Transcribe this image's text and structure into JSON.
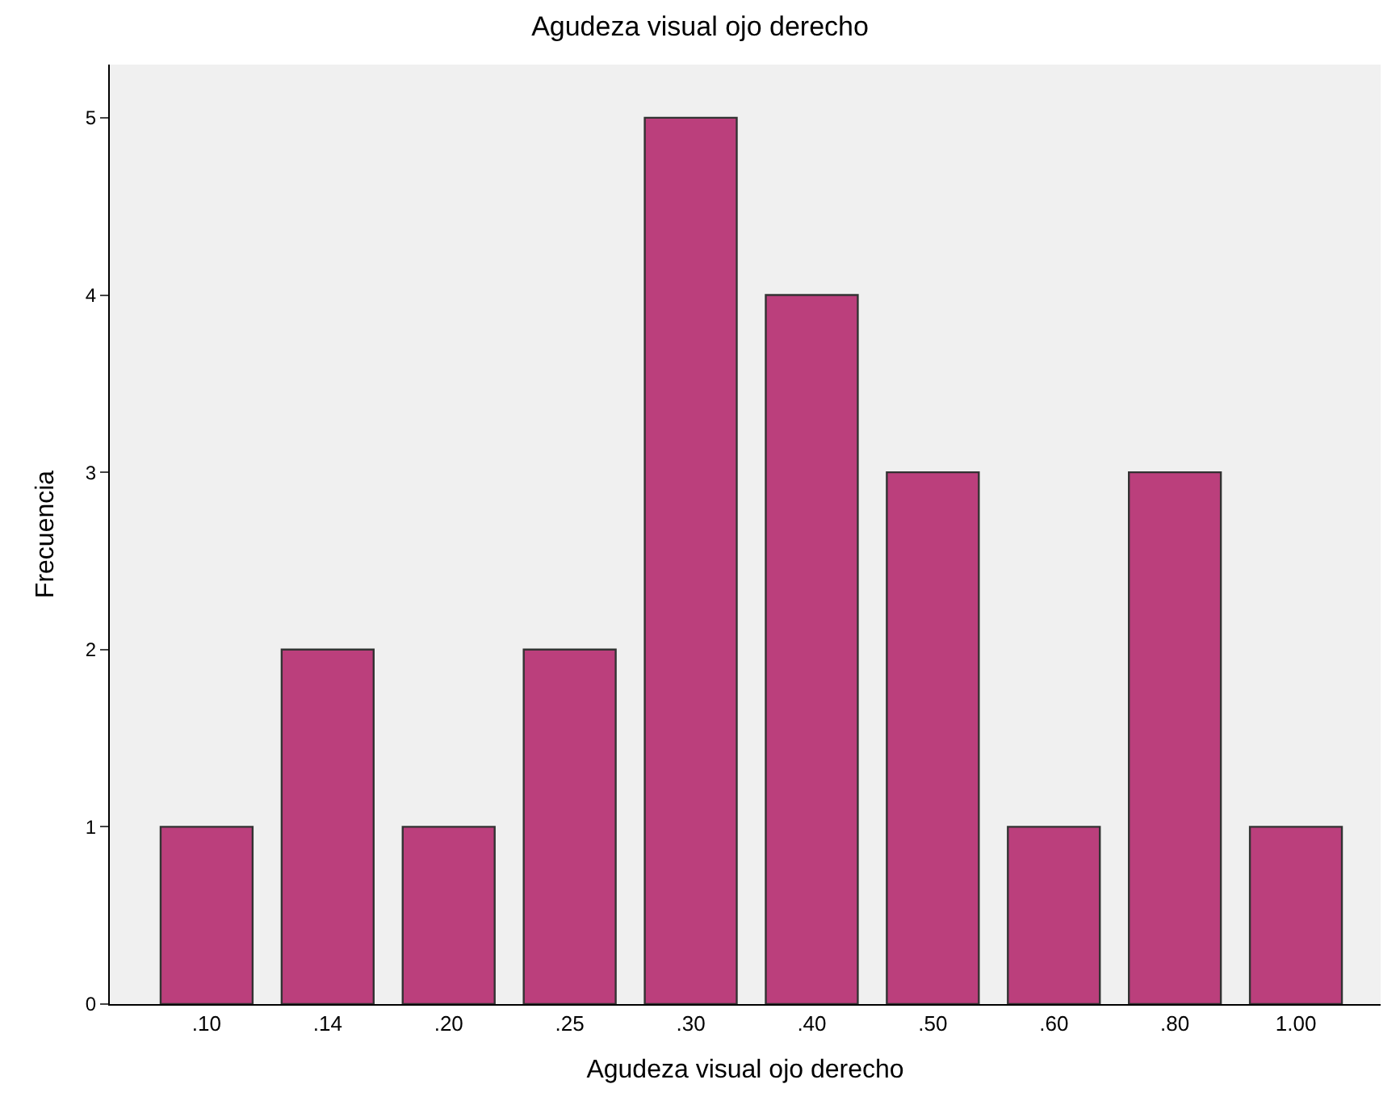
{
  "chart_data": {
    "type": "bar",
    "title": "Agudeza visual ojo derecho",
    "xlabel": "Agudeza visual ojo derecho",
    "ylabel": "Frecuencia",
    "categories": [
      ".10",
      ".14",
      ".20",
      ".25",
      ".30",
      ".40",
      ".50",
      ".60",
      ".80",
      "1.00"
    ],
    "values": [
      1,
      2,
      1,
      2,
      5,
      4,
      3,
      1,
      3,
      1
    ],
    "color": "#bb3f7c",
    "ylim": [
      0,
      5.3
    ],
    "yticks": [
      0,
      1,
      2,
      3,
      4,
      5
    ],
    "grid": false,
    "legend": false
  }
}
